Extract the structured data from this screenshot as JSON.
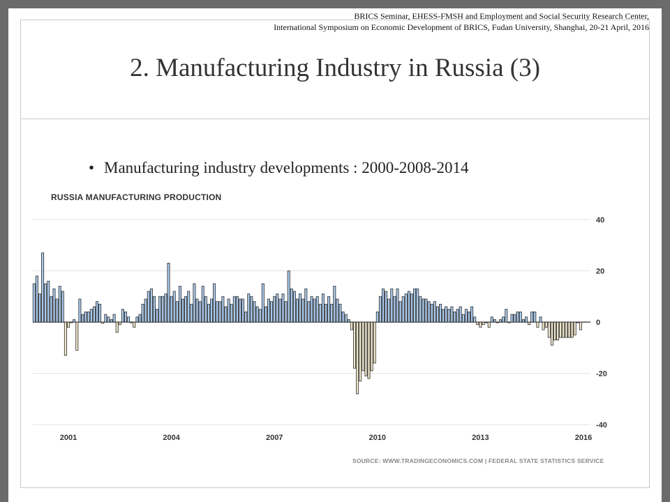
{
  "header": {
    "line1": "BRICS Seminar, EHESS-FMSH and Employment and Social Security Research Center,",
    "line2": "International Symposium on Economic Development of BRICS, Fudan University, Shanghai, 20-21 April, 2016"
  },
  "slide": {
    "title": "2. Manufacturing Industry in Russia (3)",
    "bullet": "Manufacturing industry developments : 2000-2008-2014"
  },
  "chart_data": {
    "type": "bar",
    "title": "RUSSIA MANUFACTURING PRODUCTION",
    "source": "SOURCE: WWW.TRADINGECONOMICS.COM | FEDERAL STATE STATISTICS SERVICE",
    "xlabel": "",
    "ylabel": "",
    "x_ticks": [
      "2001",
      "2004",
      "2007",
      "2010",
      "2013",
      "2016"
    ],
    "y_ticks": [
      "40",
      "20",
      "0",
      "-20",
      "-40"
    ],
    "ylim": [
      -40,
      40
    ],
    "grid": true,
    "y_axis_side": "right",
    "colors": {
      "positive": "#a9c8ea",
      "negative": "#efe6cb",
      "outline": "#2b2b2b",
      "grid": "#e4e4e4"
    },
    "frequency": "monthly",
    "start": "2000-01",
    "values": [
      15,
      18,
      11,
      27,
      15,
      16,
      10,
      13,
      9,
      14,
      12,
      -13,
      -2,
      0,
      1,
      -11,
      9,
      3,
      4,
      4,
      5,
      6,
      8,
      7,
      -0.5,
      3,
      2,
      1,
      3,
      -4,
      -1,
      5,
      4,
      2,
      0,
      -2,
      2,
      3,
      7,
      9,
      12,
      13,
      10,
      5,
      10,
      10,
      11,
      23,
      10,
      12,
      8,
      14,
      9,
      10,
      12,
      7,
      15,
      9,
      8,
      14,
      10,
      7,
      9,
      15,
      8,
      8,
      10,
      6,
      9,
      7,
      10,
      10,
      9,
      9,
      4,
      11,
      10,
      8,
      6,
      5,
      15,
      6,
      9,
      8,
      10,
      11,
      9,
      11,
      8,
      20,
      13,
      12,
      9,
      11,
      9,
      13,
      8,
      10,
      9,
      10,
      7,
      11,
      7,
      10,
      7,
      14,
      9,
      7,
      4,
      3,
      1,
      -3,
      -18,
      -28,
      -23,
      -19,
      -21,
      -22,
      -19,
      -16,
      4,
      10,
      13,
      12,
      9,
      13,
      10,
      13,
      8,
      10,
      11,
      12,
      11,
      13,
      13,
      10,
      9,
      9,
      8,
      7,
      8,
      6,
      7,
      5,
      6,
      5,
      6,
      4,
      5,
      6,
      3,
      5,
      4,
      6,
      2,
      -1,
      -2,
      -1,
      0,
      -2,
      2,
      1,
      0,
      1,
      2,
      5,
      0,
      3,
      3,
      4,
      4,
      1,
      2,
      -1,
      4,
      4,
      -2,
      2,
      -3,
      -2,
      -6,
      -9,
      -7,
      -7,
      -6,
      -6,
      -6,
      -6,
      -6,
      -5,
      0,
      -3
    ]
  }
}
